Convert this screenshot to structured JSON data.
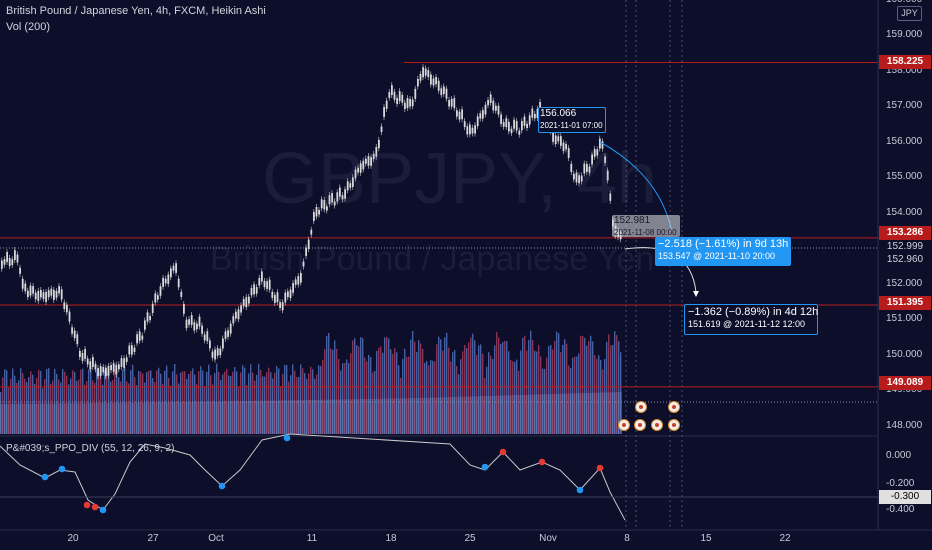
{
  "header": {
    "symbol_line": "British Pound / Japanese Yen, 4h, FXCM, Heikin Ashi",
    "volume_label": "Vol (200)",
    "indicator_label": "P&#039;s_PPO_DIV (55, 12, 26, 9, 2)"
  },
  "watermark": {
    "symbol": "GBPJPY, 4h",
    "description": "British Pound / Japanese Yen"
  },
  "currency_button": "JPY",
  "price_axis": {
    "labels": [
      "160.000",
      "159.000",
      "158.000",
      "157.000",
      "156.000",
      "155.000",
      "154.000",
      "153.000",
      "152.000",
      "151.000",
      "150.000",
      "149.000",
      "148.000"
    ]
  },
  "price_tags": [
    {
      "text": "158.225",
      "color": "#b71c1c"
    },
    {
      "text": "153.286",
      "color": "#b71c1c"
    },
    {
      "text": "152.999",
      "color": "#0c0e2a"
    },
    {
      "text": "152.960",
      "color": "#0c0e2a"
    },
    {
      "text": "151.395",
      "color": "#b71c1c"
    },
    {
      "text": "149.089",
      "color": "#b71c1c"
    }
  ],
  "indicator_axis": {
    "labels": [
      "0.000",
      "-0.200",
      "-0.400"
    ],
    "tag": "-0.300"
  },
  "time_axis": [
    "20",
    "27",
    "Oct",
    "11",
    "18",
    "25",
    "Nov",
    "8",
    "15",
    "22"
  ],
  "annotations": {
    "high_box": {
      "price": "156.066",
      "date": "2021-11-01 07:00"
    },
    "mid_box": {
      "price": "152.981",
      "date": "2021-11-08 00:00"
    },
    "proj1": {
      "change": "−2.518 (−1.61%) in 9d 13h",
      "target": "153.547 @ 2021-11-10  20:00"
    },
    "proj2": {
      "change": "−1.362 (−0.89%) in 4d 12h",
      "target": "151.619 @ 2021-11-12  12:00"
    }
  },
  "colors": {
    "background": "#0c0e2a",
    "candle": "#d9d9d9",
    "level_line": "#b71c1c",
    "projection_blue": "#2196f3",
    "volume_blue": "#5170b8",
    "volume_red": "#a03a5a",
    "ppo_line": "#c8c8c8",
    "divergence_red": "#e53935",
    "divergence_blue": "#2196f3"
  },
  "icons": [
    "event-icon",
    "projection-arrow-icon"
  ]
}
